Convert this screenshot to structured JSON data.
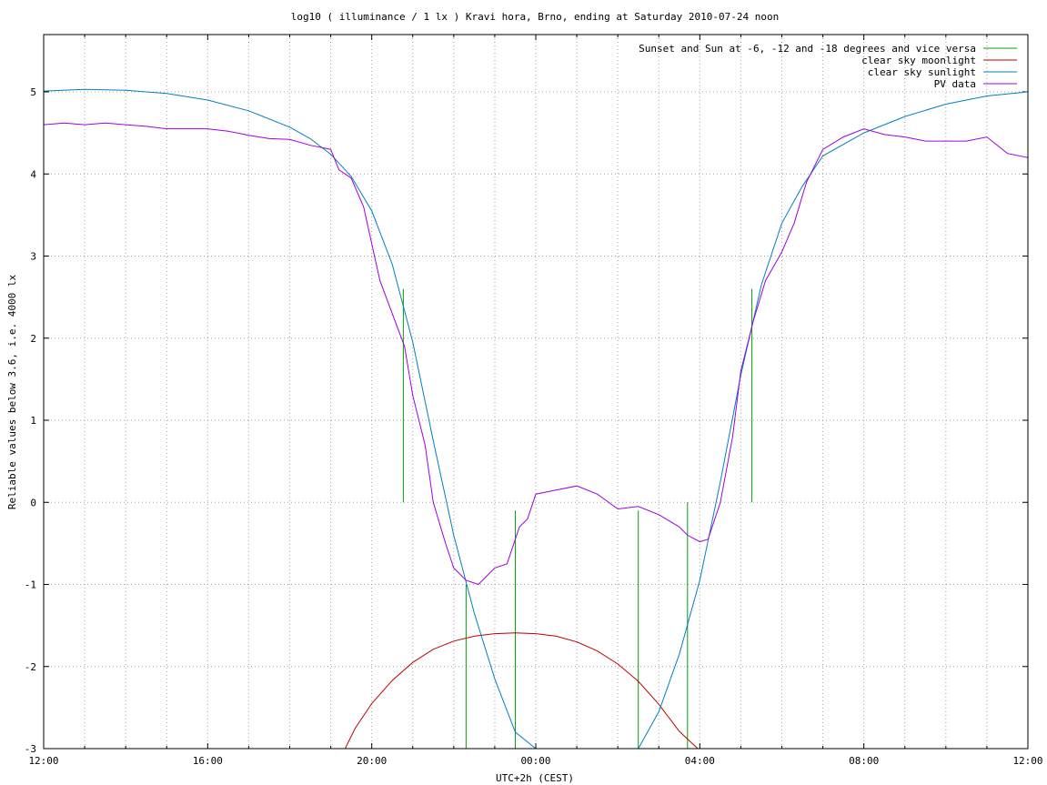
{
  "chart_data": {
    "type": "line",
    "title": "log10 ( illuminance / 1 lx ) Kravi hora, Brno, ending at Saturday 2010-07-24 noon",
    "xlabel": "UTC+2h (CEST)",
    "ylabel": "Reliable values below 3.6, i.e. 4000 lx",
    "xlim": [
      0,
      24
    ],
    "ylim": [
      -3,
      5.8
    ],
    "x_unit": "hours after 12:00 (2010-07-23)",
    "x_ticks": [
      {
        "x": 0,
        "label": "12:00"
      },
      {
        "x": 4,
        "label": "16:00"
      },
      {
        "x": 8,
        "label": "20:00"
      },
      {
        "x": 12,
        "label": "00:00"
      },
      {
        "x": 16,
        "label": "04:00"
      },
      {
        "x": 20,
        "label": "08:00"
      },
      {
        "x": 24,
        "label": "12:00"
      }
    ],
    "y_ticks": [
      {
        "y": 5,
        "label": "5"
      },
      {
        "y": 4,
        "label": "4"
      },
      {
        "y": 3,
        "label": "3"
      },
      {
        "y": 2,
        "label": "2"
      },
      {
        "y": 1,
        "label": "1"
      },
      {
        "y": 0,
        "label": "0"
      },
      {
        "y": -1,
        "label": "-1"
      },
      {
        "y": -2,
        "label": "-2"
      },
      {
        "y": -3,
        "label": "-3"
      }
    ],
    "grid": true,
    "legend_position": "top-right",
    "series": [
      {
        "name": "Sunset and Sun at -6, -12 and -18 degrees and vice versa",
        "kind": "vlines",
        "color": "#00a000",
        "lines": [
          {
            "x": 8.77,
            "y0": 0,
            "y1": 2.6
          },
          {
            "x": 10.3,
            "y0": -3,
            "y1": -1.0
          },
          {
            "x": 11.5,
            "y0": -3,
            "y1": -0.1
          },
          {
            "x": 14.5,
            "y0": -3,
            "y1": -0.1
          },
          {
            "x": 15.7,
            "y0": -3,
            "y1": 0
          },
          {
            "x": 17.27,
            "y0": 0,
            "y1": 2.6
          }
        ]
      },
      {
        "name": "clear sky moonlight",
        "color": "#c00000",
        "x": [
          7.35,
          7.6,
          8.0,
          8.5,
          9.0,
          9.5,
          10.0,
          10.5,
          11.0,
          11.5,
          12.0,
          12.5,
          13.0,
          13.5,
          14.0,
          14.5,
          15.0,
          15.5,
          15.95
        ],
        "y": [
          -3.0,
          -2.75,
          -2.45,
          -2.17,
          -1.95,
          -1.79,
          -1.69,
          -1.63,
          -1.6,
          -1.59,
          -1.6,
          -1.63,
          -1.7,
          -1.81,
          -1.97,
          -2.18,
          -2.46,
          -2.79,
          -3.0
        ]
      },
      {
        "name": "clear sky sunlight",
        "color": "#0080c0",
        "x": [
          0,
          1,
          2,
          3,
          4,
          5,
          6,
          6.5,
          7,
          7.5,
          8,
          8.5,
          9,
          9.5,
          10,
          10.5,
          11,
          11.5,
          12.0,
          13.0,
          14.5,
          15.0,
          15.5,
          16.0,
          16.5,
          17.0,
          17.5,
          18.0,
          18.5,
          19,
          20,
          21,
          22,
          23,
          24
        ],
        "y": [
          5.01,
          5.03,
          5.02,
          4.98,
          4.9,
          4.77,
          4.57,
          4.43,
          4.24,
          3.97,
          3.55,
          2.9,
          1.95,
          0.75,
          -0.4,
          -1.35,
          -2.15,
          -2.8,
          -3.0,
          -3.0,
          -3.0,
          -2.55,
          -1.85,
          -0.95,
          0.25,
          1.55,
          2.65,
          3.4,
          3.85,
          4.22,
          4.5,
          4.7,
          4.85,
          4.95,
          5.0
        ]
      },
      {
        "name": "PV data",
        "color": "#a000e0",
        "x": [
          0,
          0.5,
          1,
          1.5,
          2,
          2.5,
          3,
          3.5,
          4,
          4.5,
          5,
          5.5,
          6,
          6.5,
          7,
          7.2,
          7.5,
          7.8,
          8.0,
          8.2,
          8.5,
          8.8,
          9.0,
          9.3,
          9.5,
          9.8,
          10.0,
          10.3,
          10.6,
          10.8,
          11.0,
          11.3,
          11.6,
          11.8,
          12.0,
          12.5,
          13.0,
          13.5,
          14.0,
          14.5,
          15.0,
          15.5,
          15.7,
          16.0,
          16.2,
          16.5,
          16.8,
          17.0,
          17.3,
          17.6,
          18.0,
          18.3,
          18.6,
          19.0,
          19.5,
          20.0,
          20.5,
          21.0,
          21.5,
          22.0,
          22.5,
          23.0,
          23.5,
          24.0
        ],
        "y": [
          4.6,
          4.62,
          4.6,
          4.62,
          4.6,
          4.58,
          4.55,
          4.55,
          4.55,
          4.52,
          4.47,
          4.43,
          4.42,
          4.35,
          4.3,
          4.05,
          3.95,
          3.6,
          3.15,
          2.7,
          2.3,
          1.9,
          1.3,
          0.7,
          0.0,
          -0.5,
          -0.8,
          -0.95,
          -1.0,
          -0.9,
          -0.8,
          -0.75,
          -0.3,
          -0.2,
          0.1,
          0.15,
          0.2,
          0.1,
          -0.08,
          -0.05,
          -0.15,
          -0.3,
          -0.4,
          -0.48,
          -0.45,
          0.0,
          0.8,
          1.6,
          2.2,
          2.7,
          3.05,
          3.4,
          3.9,
          4.3,
          4.45,
          4.55,
          4.48,
          4.45,
          4.4,
          4.4,
          4.4,
          4.45,
          4.25,
          4.2
        ]
      }
    ]
  }
}
